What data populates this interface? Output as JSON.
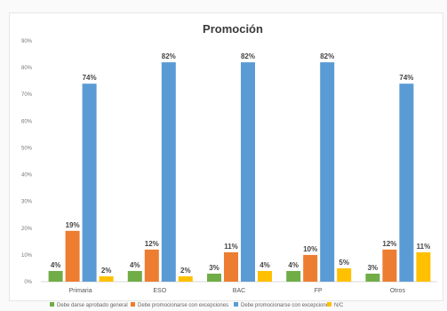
{
  "chart_data": {
    "type": "bar",
    "title": "Promoción",
    "categories": [
      "Primaria",
      "ESO",
      "BAC",
      "FP",
      "Otros"
    ],
    "ylim": [
      0,
      90
    ],
    "ytick_labels": [
      "0%",
      "10%",
      "20%",
      "30%",
      "40%",
      "50%",
      "60%",
      "70%",
      "80%",
      "90%"
    ],
    "grid": false,
    "legend_position": "bottom",
    "series": [
      {
        "name": "Debe darse aprobado general",
        "color": "#70ad47",
        "values": [
          4,
          4,
          3,
          4,
          3
        ],
        "labels": [
          "4%",
          "4%",
          "3%",
          "4%",
          "3%"
        ]
      },
      {
        "name": "Debe promocionarse con excepciones",
        "color": "#ed7d31",
        "values": [
          19,
          12,
          11,
          10,
          12
        ],
        "labels": [
          "19%",
          "12%",
          "11%",
          "10%",
          "12%"
        ]
      },
      {
        "name": "Debe promocionarse con excepciones",
        "color": "#5b9bd5",
        "values": [
          74,
          82,
          82,
          82,
          74
        ],
        "labels": [
          "74%",
          "82%",
          "82%",
          "82%",
          "74%"
        ]
      },
      {
        "name": "N/C",
        "color": "#ffc000",
        "values": [
          2,
          2,
          4,
          5,
          11
        ],
        "labels": [
          "2%",
          "2%",
          "4%",
          "5%",
          "11%"
        ]
      }
    ]
  }
}
